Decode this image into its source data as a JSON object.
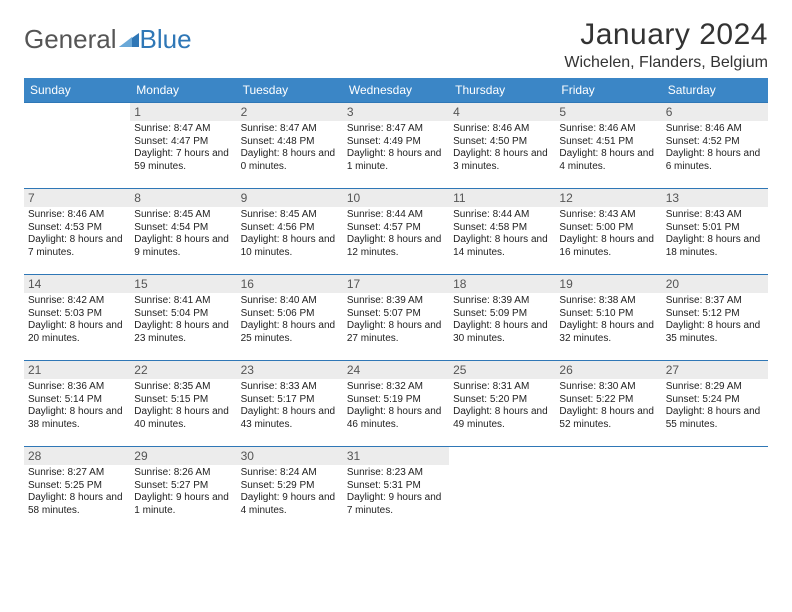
{
  "logo": {
    "text1": "General",
    "text2": "Blue"
  },
  "title": "January 2024",
  "location": "Wichelen, Flanders, Belgium",
  "colors": {
    "header_bg": "#3b86c6",
    "header_text": "#ffffff",
    "week_border": "#2f77b6",
    "daynum_bg": "#ececec",
    "logo_blue": "#2f77b6",
    "body_text": "#222222"
  },
  "days_of_week": [
    "Sunday",
    "Monday",
    "Tuesday",
    "Wednesday",
    "Thursday",
    "Friday",
    "Saturday"
  ],
  "weeks": [
    [
      null,
      {
        "n": "1",
        "sr": "8:47 AM",
        "ss": "4:47 PM",
        "dl": "7 hours and 59 minutes."
      },
      {
        "n": "2",
        "sr": "8:47 AM",
        "ss": "4:48 PM",
        "dl": "8 hours and 0 minutes."
      },
      {
        "n": "3",
        "sr": "8:47 AM",
        "ss": "4:49 PM",
        "dl": "8 hours and 1 minute."
      },
      {
        "n": "4",
        "sr": "8:46 AM",
        "ss": "4:50 PM",
        "dl": "8 hours and 3 minutes."
      },
      {
        "n": "5",
        "sr": "8:46 AM",
        "ss": "4:51 PM",
        "dl": "8 hours and 4 minutes."
      },
      {
        "n": "6",
        "sr": "8:46 AM",
        "ss": "4:52 PM",
        "dl": "8 hours and 6 minutes."
      }
    ],
    [
      {
        "n": "7",
        "sr": "8:46 AM",
        "ss": "4:53 PM",
        "dl": "8 hours and 7 minutes."
      },
      {
        "n": "8",
        "sr": "8:45 AM",
        "ss": "4:54 PM",
        "dl": "8 hours and 9 minutes."
      },
      {
        "n": "9",
        "sr": "8:45 AM",
        "ss": "4:56 PM",
        "dl": "8 hours and 10 minutes."
      },
      {
        "n": "10",
        "sr": "8:44 AM",
        "ss": "4:57 PM",
        "dl": "8 hours and 12 minutes."
      },
      {
        "n": "11",
        "sr": "8:44 AM",
        "ss": "4:58 PM",
        "dl": "8 hours and 14 minutes."
      },
      {
        "n": "12",
        "sr": "8:43 AM",
        "ss": "5:00 PM",
        "dl": "8 hours and 16 minutes."
      },
      {
        "n": "13",
        "sr": "8:43 AM",
        "ss": "5:01 PM",
        "dl": "8 hours and 18 minutes."
      }
    ],
    [
      {
        "n": "14",
        "sr": "8:42 AM",
        "ss": "5:03 PM",
        "dl": "8 hours and 20 minutes."
      },
      {
        "n": "15",
        "sr": "8:41 AM",
        "ss": "5:04 PM",
        "dl": "8 hours and 23 minutes."
      },
      {
        "n": "16",
        "sr": "8:40 AM",
        "ss": "5:06 PM",
        "dl": "8 hours and 25 minutes."
      },
      {
        "n": "17",
        "sr": "8:39 AM",
        "ss": "5:07 PM",
        "dl": "8 hours and 27 minutes."
      },
      {
        "n": "18",
        "sr": "8:39 AM",
        "ss": "5:09 PM",
        "dl": "8 hours and 30 minutes."
      },
      {
        "n": "19",
        "sr": "8:38 AM",
        "ss": "5:10 PM",
        "dl": "8 hours and 32 minutes."
      },
      {
        "n": "20",
        "sr": "8:37 AM",
        "ss": "5:12 PM",
        "dl": "8 hours and 35 minutes."
      }
    ],
    [
      {
        "n": "21",
        "sr": "8:36 AM",
        "ss": "5:14 PM",
        "dl": "8 hours and 38 minutes."
      },
      {
        "n": "22",
        "sr": "8:35 AM",
        "ss": "5:15 PM",
        "dl": "8 hours and 40 minutes."
      },
      {
        "n": "23",
        "sr": "8:33 AM",
        "ss": "5:17 PM",
        "dl": "8 hours and 43 minutes."
      },
      {
        "n": "24",
        "sr": "8:32 AM",
        "ss": "5:19 PM",
        "dl": "8 hours and 46 minutes."
      },
      {
        "n": "25",
        "sr": "8:31 AM",
        "ss": "5:20 PM",
        "dl": "8 hours and 49 minutes."
      },
      {
        "n": "26",
        "sr": "8:30 AM",
        "ss": "5:22 PM",
        "dl": "8 hours and 52 minutes."
      },
      {
        "n": "27",
        "sr": "8:29 AM",
        "ss": "5:24 PM",
        "dl": "8 hours and 55 minutes."
      }
    ],
    [
      {
        "n": "28",
        "sr": "8:27 AM",
        "ss": "5:25 PM",
        "dl": "8 hours and 58 minutes."
      },
      {
        "n": "29",
        "sr": "8:26 AM",
        "ss": "5:27 PM",
        "dl": "9 hours and 1 minute."
      },
      {
        "n": "30",
        "sr": "8:24 AM",
        "ss": "5:29 PM",
        "dl": "9 hours and 4 minutes."
      },
      {
        "n": "31",
        "sr": "8:23 AM",
        "ss": "5:31 PM",
        "dl": "9 hours and 7 minutes."
      },
      null,
      null,
      null
    ]
  ],
  "labels": {
    "sunrise": "Sunrise:",
    "sunset": "Sunset:",
    "daylight": "Daylight:"
  }
}
